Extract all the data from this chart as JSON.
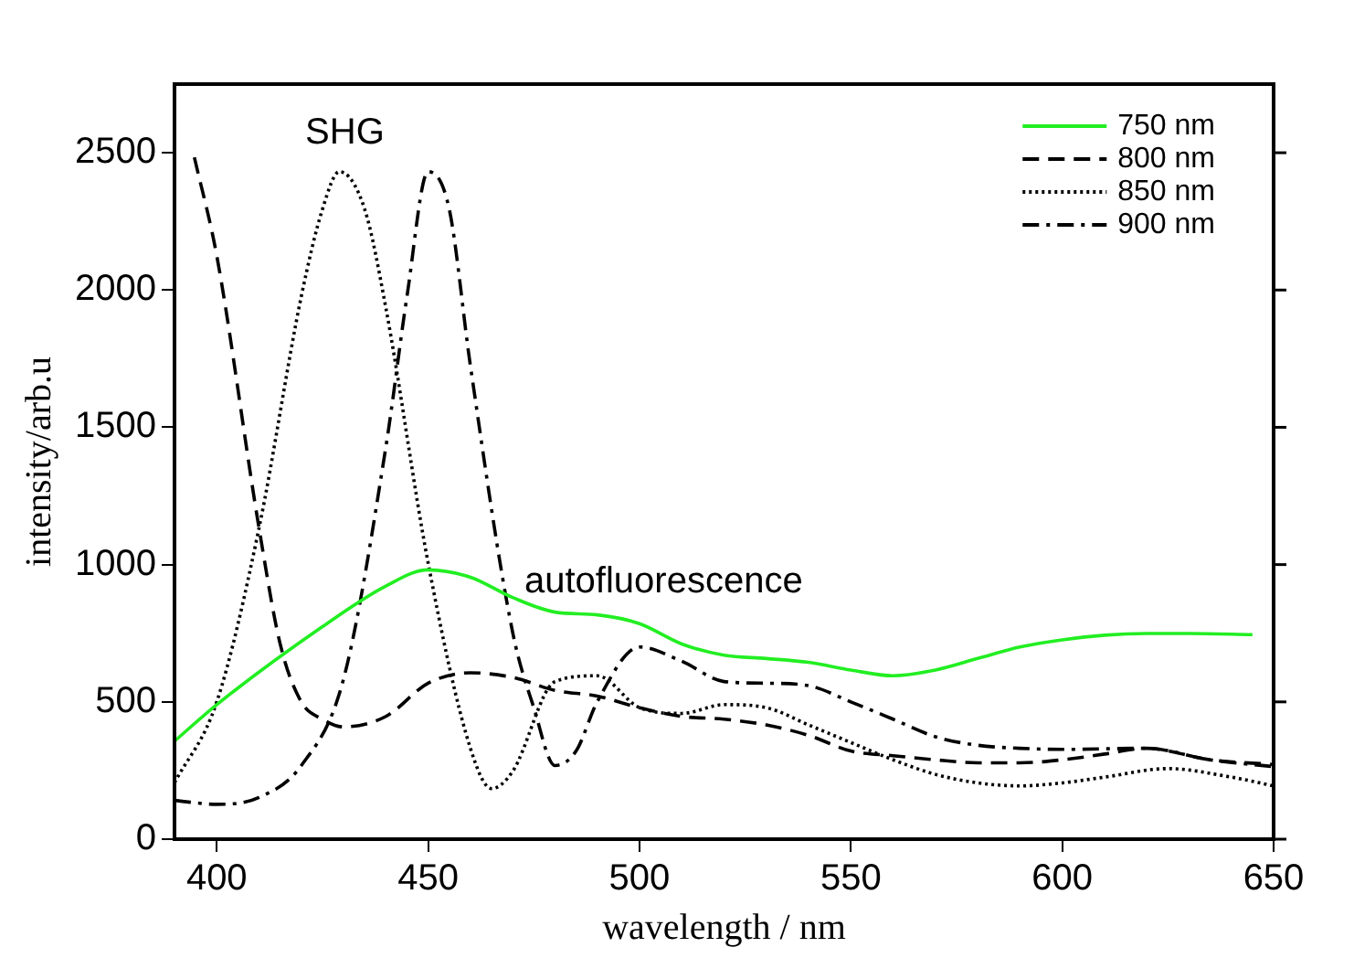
{
  "chart_data": {
    "type": "line",
    "xlabel": "wavelength / nm",
    "ylabel": "intensity/arb.u",
    "xlim": [
      390,
      650
    ],
    "xticks": [
      400,
      450,
      500,
      550,
      600,
      650
    ],
    "ylim": [
      0,
      2750
    ],
    "yticks": [
      0,
      500,
      1000,
      1500,
      2000,
      2500
    ],
    "grid": false,
    "legend": "top right",
    "marker": "none",
    "annotations": [
      "SHG",
      "autofluorescence"
    ],
    "series": [
      {
        "name": "750 nm",
        "color": "#22ee22",
        "line_style": "solid",
        "x": [
          390,
          400,
          425,
          440,
          450,
          460,
          470,
          480,
          490,
          500,
          510,
          520,
          530,
          540,
          550,
          560,
          570,
          580,
          590,
          600,
          610,
          620,
          630,
          645
        ],
        "values": [
          357,
          490,
          774,
          922,
          981,
          954,
          880,
          827,
          817,
          785,
          711,
          670,
          658,
          644,
          616,
          595,
          616,
          658,
          700,
          726,
          743,
          749,
          749,
          745
        ]
      },
      {
        "name": "800 nm",
        "color": "#000000",
        "line_style": "dashed",
        "x": [
          394.7,
          400,
          410,
          415,
          420,
          425,
          430,
          440,
          450,
          460,
          470,
          480,
          490,
          500,
          510,
          520,
          530,
          540,
          550,
          560,
          570,
          580,
          590,
          600,
          610,
          620,
          635,
          650
        ],
        "values": [
          2483,
          2125,
          1133,
          711,
          500,
          437,
          409,
          447,
          568,
          606,
          589,
          542,
          521,
          479,
          447,
          437,
          416,
          378,
          321,
          304,
          289,
          278,
          278,
          289,
          310,
          331,
          289,
          272
        ]
      },
      {
        "name": "850 nm",
        "color": "#000000",
        "line_style": "dotted",
        "x": [
          390,
          400,
          410,
          420,
          425,
          429,
          435,
          440,
          450,
          460,
          465,
          470,
          480,
          490,
          500,
          510,
          520,
          530,
          540,
          550,
          560,
          570,
          580,
          590,
          600,
          610,
          625,
          640,
          650
        ],
        "values": [
          205,
          500,
          1133,
          1977,
          2294,
          2431,
          2294,
          1935,
          1006,
          331,
          184,
          247,
          574,
          595,
          479,
          458,
          490,
          479,
          416,
          352,
          289,
          236,
          205,
          194,
          205,
          226,
          257,
          226,
          194
        ]
      },
      {
        "name": "900 nm",
        "color": "#000000",
        "line_style": "dashdot",
        "x": [
          390,
          400,
          410,
          420,
          430,
          440,
          445,
          450,
          455,
          460,
          470,
          475,
          480,
          485,
          490,
          500,
          510,
          520,
          530,
          540,
          550,
          560,
          570,
          580,
          590,
          600,
          620,
          635,
          650
        ],
        "values": [
          141,
          127,
          152,
          268,
          584,
          1428,
          1977,
          2431,
          2294,
          1724,
          753,
          479,
          268,
          321,
          500,
          700,
          648,
          574,
          568,
          559,
          500,
          437,
          373,
          342,
          331,
          327,
          331,
          289,
          264
        ]
      }
    ]
  }
}
